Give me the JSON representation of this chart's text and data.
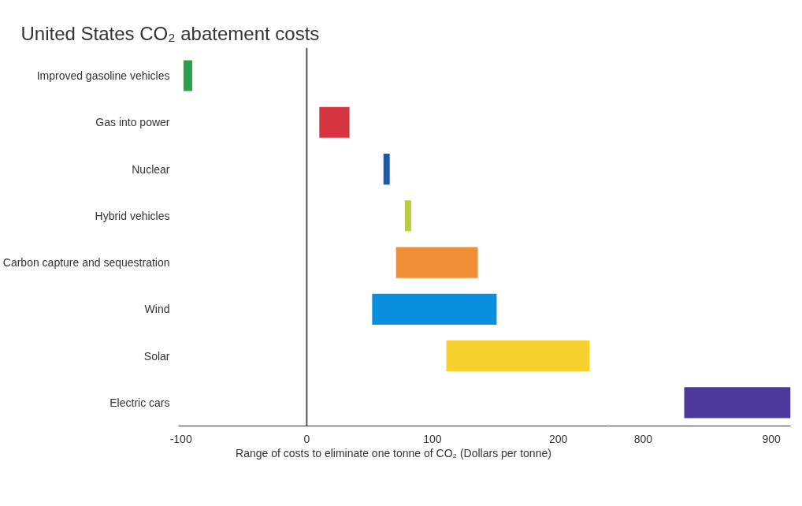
{
  "chart_data": [
    {
      "type": "bar",
      "orientation": "horizontal",
      "title": "United States CO₂ abatement costs",
      "xlabel": "Range of costs to eliminate one tonne of CO₂ (Dollars per tonne)",
      "categories": [
        "Improved gasoline vehicles",
        "Gas into power",
        "Nuclear",
        "Hybrid vehicles",
        "Carbon capture and sequestration",
        "Wind",
        "Solar",
        "Electric cars"
      ],
      "base": [
        -98,
        10,
        61,
        78,
        71,
        52,
        111,
        null
      ],
      "values": [
        7,
        24,
        5,
        5,
        65,
        99,
        114,
        null
      ],
      "colors": [
        "#2e9e4f",
        "#d6343f",
        "#1c5ba8",
        "#b7cd3e",
        "#ef8e35",
        "#0a8fe0",
        "#f7d12e",
        "#4b3a9c"
      ],
      "xlim": [
        -102,
        240
      ],
      "xticks": [
        -100,
        0,
        100,
        200
      ],
      "ref_lines": [
        {
          "axis": "x",
          "value": 0,
          "color": "#555555"
        }
      ]
    },
    {
      "type": "bar",
      "orientation": "horizontal",
      "categories": [
        null,
        null,
        null,
        null,
        null,
        null,
        null,
        null
      ],
      "base": [
        null,
        null,
        null,
        null,
        null,
        null,
        null,
        832
      ],
      "values": [
        null,
        null,
        null,
        null,
        null,
        null,
        null,
        83
      ],
      "colors": [
        "#2e9e4f",
        "#d6343f",
        "#1c5ba8",
        "#b7cd3e",
        "#ef8e35",
        "#0a8fe0",
        "#f7d12e",
        "#4b3a9c"
      ],
      "xlim": [
        773,
        915
      ],
      "xticks": [
        800,
        900
      ]
    }
  ]
}
